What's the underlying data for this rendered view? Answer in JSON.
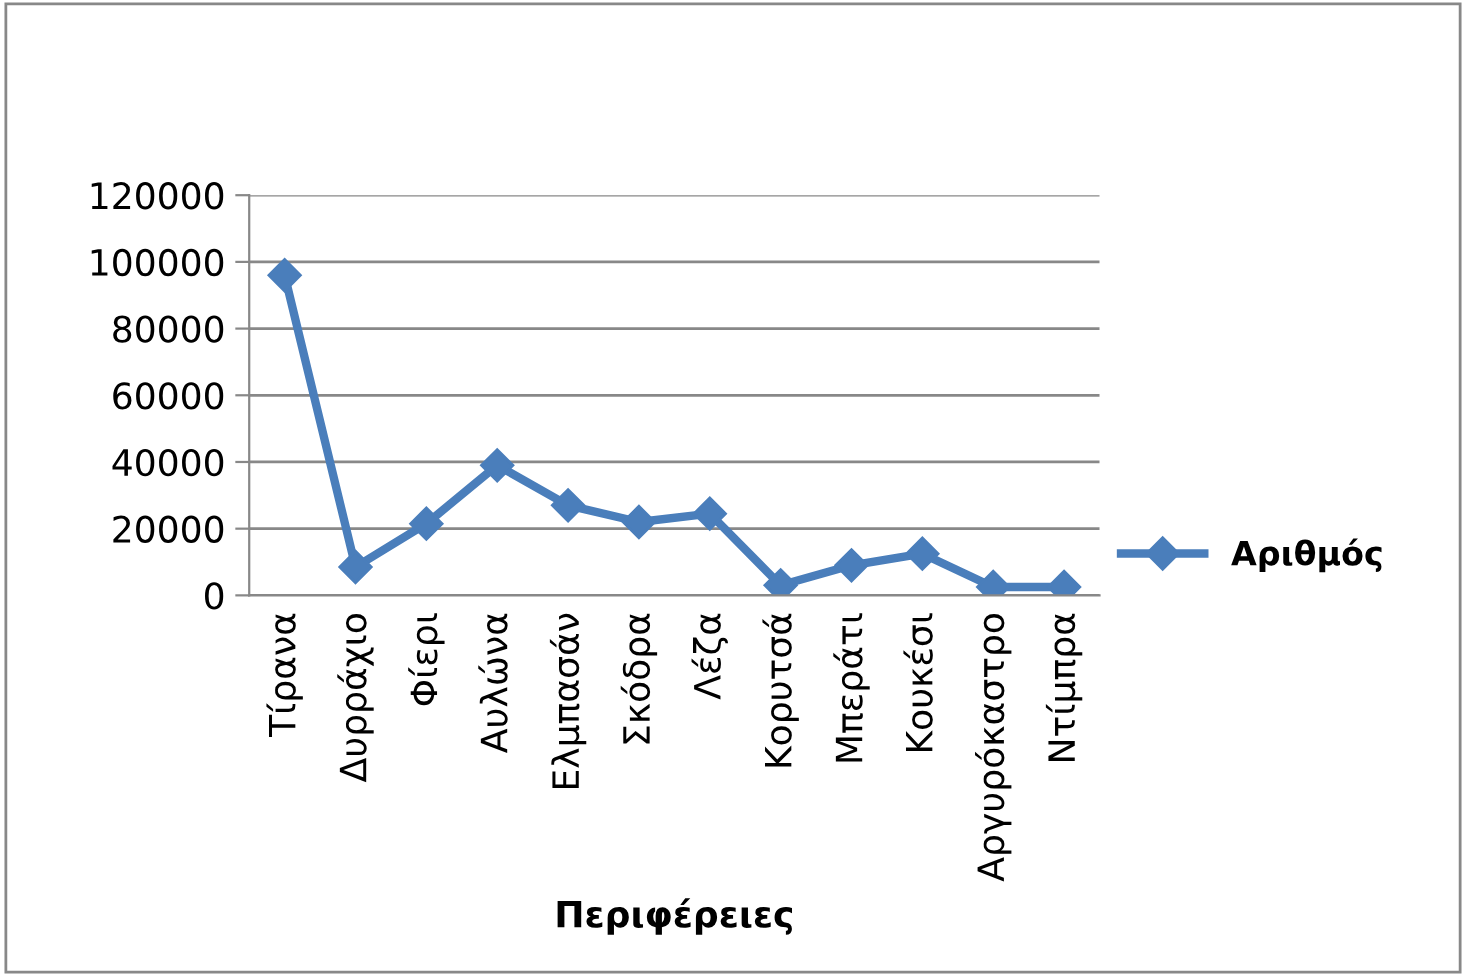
{
  "chart_data": {
    "type": "line",
    "xlabel": "Περιφέρειες",
    "categories": [
      "Τίρανα",
      "Δυρράχιο",
      "Φίερι",
      "Αυλώνα",
      "Ελμπασάν",
      "Σκόδρα",
      "Λέζα",
      "Κορυτσά",
      "Μπεράτι",
      "Κουκέσι",
      "Αργυρόκαστρο",
      "Ντίμπρα"
    ],
    "series": [
      {
        "name": "Αριθμός",
        "color": "#4a7ebb",
        "values": [
          96000,
          8500,
          21500,
          39000,
          27000,
          22000,
          24500,
          3000,
          9000,
          12500,
          2500,
          2500
        ]
      }
    ],
    "ylim": [
      0,
      120000
    ],
    "yticks": [
      0,
      20000,
      40000,
      60000,
      80000,
      100000,
      120000
    ],
    "grid": "y",
    "legend": "right",
    "marker": "diamond",
    "line_style": "solid"
  }
}
